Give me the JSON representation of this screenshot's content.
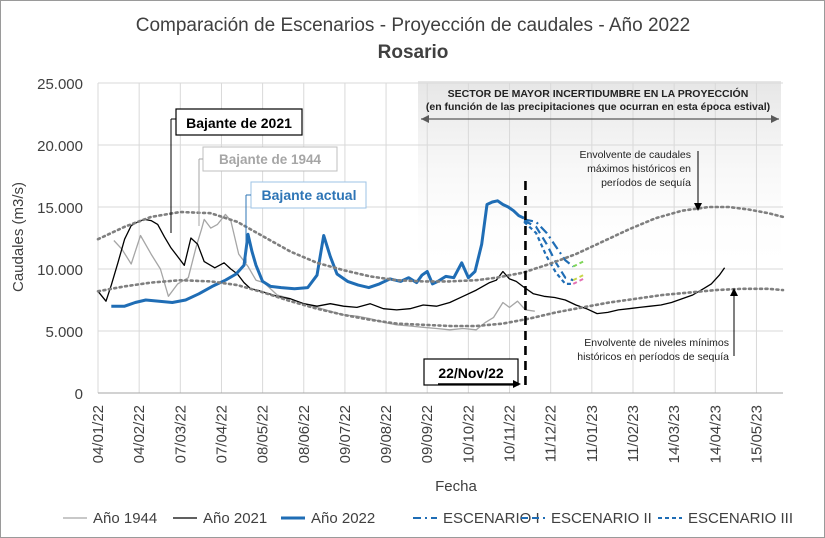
{
  "chart_data": {
    "type": "line",
    "title": "Comparación de Escenarios - Proyección de caudales - Año 2022",
    "subtitle": "Rosario",
    "xlabel": "Fecha",
    "ylabel": "Caudales (m3/s)",
    "ylim": [
      0,
      25000
    ],
    "y_ticks": [
      0,
      5000,
      10000,
      15000,
      20000,
      25000
    ],
    "y_tick_labels": [
      "0",
      "5.000",
      "10.000",
      "15.000",
      "20.000",
      "25.000"
    ],
    "x_range_days": [
      0,
      516
    ],
    "x_ticks": [
      {
        "label": "04/01/22",
        "day": 0
      },
      {
        "label": "04/02/22",
        "day": 31
      },
      {
        "label": "07/03/22",
        "day": 62
      },
      {
        "label": "07/04/22",
        "day": 93
      },
      {
        "label": "08/05/22",
        "day": 124
      },
      {
        "label": "08/06/22",
        "day": 155
      },
      {
        "label": "09/07/22",
        "day": 186
      },
      {
        "label": "09/08/22",
        "day": 217
      },
      {
        "label": "09/09/22",
        "day": 248
      },
      {
        "label": "10/10/22",
        "day": 279
      },
      {
        "label": "10/11/22",
        "day": 310
      },
      {
        "label": "11/12/22",
        "day": 341
      },
      {
        "label": "11/01/23",
        "day": 372
      },
      {
        "label": "11/02/23",
        "day": 403
      },
      {
        "label": "14/03/23",
        "day": 434
      },
      {
        "label": "14/04/23",
        "day": 465
      },
      {
        "label": "15/05/23",
        "day": 496
      }
    ],
    "series": [
      {
        "name": "Año 1944",
        "color": "#a6a6a6",
        "points": [
          [
            12,
            12300
          ],
          [
            18,
            11600
          ],
          [
            25,
            10400
          ],
          [
            32,
            12700
          ],
          [
            40,
            11200
          ],
          [
            47,
            10000
          ],
          [
            53,
            7800
          ],
          [
            60,
            8800
          ],
          [
            68,
            9300
          ],
          [
            74,
            11800
          ],
          [
            78,
            13200
          ],
          [
            80,
            14000
          ],
          [
            85,
            13300
          ],
          [
            90,
            13600
          ],
          [
            96,
            14400
          ],
          [
            100,
            13900
          ],
          [
            106,
            11200
          ],
          [
            113,
            10200
          ],
          [
            119,
            9100
          ],
          [
            125,
            8900
          ],
          [
            135,
            7900
          ],
          [
            145,
            7600
          ],
          [
            155,
            7200
          ],
          [
            165,
            6900
          ],
          [
            175,
            6600
          ],
          [
            185,
            6300
          ],
          [
            195,
            6200
          ],
          [
            205,
            6000
          ],
          [
            215,
            5700
          ],
          [
            225,
            5500
          ],
          [
            235,
            5400
          ],
          [
            245,
            5300
          ],
          [
            255,
            5200
          ],
          [
            265,
            5100
          ],
          [
            275,
            5200
          ],
          [
            285,
            5100
          ],
          [
            292,
            5700
          ],
          [
            298,
            6100
          ],
          [
            305,
            7300
          ],
          [
            310,
            6900
          ],
          [
            316,
            7400
          ],
          [
            322,
            6700
          ],
          [
            329,
            6600
          ]
        ]
      },
      {
        "name": "Año 2021",
        "color": "#000000",
        "points": [
          [
            0,
            8200
          ],
          [
            6,
            7400
          ],
          [
            10,
            8700
          ],
          [
            15,
            10500
          ],
          [
            20,
            12400
          ],
          [
            25,
            13500
          ],
          [
            30,
            13800
          ],
          [
            35,
            14000
          ],
          [
            40,
            13900
          ],
          [
            45,
            13600
          ],
          [
            50,
            12600
          ],
          [
            55,
            11700
          ],
          [
            60,
            11000
          ],
          [
            65,
            10300
          ],
          [
            70,
            12500
          ],
          [
            75,
            12000
          ],
          [
            80,
            10600
          ],
          [
            88,
            10100
          ],
          [
            95,
            10500
          ],
          [
            100,
            10000
          ],
          [
            105,
            9600
          ],
          [
            110,
            8900
          ],
          [
            115,
            8400
          ],
          [
            120,
            8300
          ],
          [
            126,
            8100
          ],
          [
            135,
            7800
          ],
          [
            145,
            7600
          ],
          [
            155,
            7200
          ],
          [
            165,
            7000
          ],
          [
            175,
            7200
          ],
          [
            185,
            7000
          ],
          [
            195,
            6900
          ],
          [
            205,
            7200
          ],
          [
            215,
            6800
          ],
          [
            225,
            6700
          ],
          [
            235,
            6800
          ],
          [
            245,
            7100
          ],
          [
            255,
            7000
          ],
          [
            265,
            7300
          ],
          [
            275,
            7800
          ],
          [
            285,
            8300
          ],
          [
            295,
            8900
          ],
          [
            300,
            9100
          ],
          [
            305,
            9800
          ],
          [
            310,
            9200
          ],
          [
            315,
            9000
          ],
          [
            320,
            8600
          ],
          [
            328,
            8000
          ],
          [
            336,
            7800
          ],
          [
            344,
            7700
          ],
          [
            352,
            7500
          ],
          [
            360,
            7100
          ],
          [
            368,
            6800
          ],
          [
            376,
            6400
          ],
          [
            384,
            6500
          ],
          [
            392,
            6700
          ],
          [
            400,
            6800
          ],
          [
            408,
            6900
          ],
          [
            416,
            7000
          ],
          [
            424,
            7100
          ],
          [
            432,
            7300
          ],
          [
            440,
            7600
          ],
          [
            448,
            7900
          ],
          [
            456,
            8400
          ],
          [
            462,
            8800
          ],
          [
            468,
            9500
          ],
          [
            472,
            10100
          ]
        ]
      },
      {
        "name": "Año 2022",
        "color": "#1f6db5",
        "points": [
          [
            10,
            7000
          ],
          [
            20,
            7000
          ],
          [
            28,
            7300
          ],
          [
            36,
            7500
          ],
          [
            46,
            7400
          ],
          [
            56,
            7300
          ],
          [
            66,
            7500
          ],
          [
            76,
            8000
          ],
          [
            86,
            8600
          ],
          [
            96,
            9100
          ],
          [
            104,
            9600
          ],
          [
            110,
            10300
          ],
          [
            113,
            12800
          ],
          [
            116,
            11400
          ],
          [
            119,
            10300
          ],
          [
            124,
            9000
          ],
          [
            130,
            8600
          ],
          [
            138,
            8500
          ],
          [
            148,
            8400
          ],
          [
            158,
            8500
          ],
          [
            165,
            9500
          ],
          [
            170,
            12700
          ],
          [
            175,
            11000
          ],
          [
            180,
            9600
          ],
          [
            188,
            9000
          ],
          [
            196,
            8700
          ],
          [
            204,
            8500
          ],
          [
            212,
            8800
          ],
          [
            220,
            9200
          ],
          [
            228,
            9000
          ],
          [
            234,
            9300
          ],
          [
            240,
            8900
          ],
          [
            244,
            9500
          ],
          [
            248,
            9800
          ],
          [
            252,
            8800
          ],
          [
            256,
            9000
          ],
          [
            262,
            9400
          ],
          [
            268,
            9300
          ],
          [
            274,
            10500
          ],
          [
            279,
            9300
          ],
          [
            284,
            9800
          ],
          [
            289,
            12000
          ],
          [
            293,
            15200
          ],
          [
            297,
            15400
          ],
          [
            301,
            15500
          ],
          [
            305,
            15200
          ],
          [
            309,
            15000
          ],
          [
            313,
            14700
          ],
          [
            317,
            14300
          ],
          [
            321,
            14100
          ]
        ]
      },
      {
        "name": "ESCENARIO I",
        "color": "#1f6db5",
        "points": [
          [
            321,
            14000
          ],
          [
            330,
            13800
          ],
          [
            338,
            12900
          ],
          [
            345,
            11800
          ],
          [
            352,
            10700
          ],
          [
            358,
            10200
          ]
        ]
      },
      {
        "name": "ESCENARIO II",
        "color": "#1f6db5",
        "points": [
          [
            321,
            13900
          ],
          [
            330,
            13400
          ],
          [
            338,
            12000
          ],
          [
            345,
            10500
          ],
          [
            352,
            9300
          ],
          [
            358,
            9100
          ]
        ]
      },
      {
        "name": "ESCENARIO III",
        "color": "#1f6db5",
        "points": [
          [
            321,
            13800
          ],
          [
            330,
            12900
          ],
          [
            338,
            11000
          ],
          [
            345,
            9700
          ],
          [
            352,
            8800
          ],
          [
            358,
            8800
          ]
        ]
      },
      {
        "name": "Envolvente máximos",
        "color": "#7f7f7f",
        "points": [
          [
            0,
            12400
          ],
          [
            20,
            13400
          ],
          [
            40,
            14200
          ],
          [
            62,
            14600
          ],
          [
            85,
            14500
          ],
          [
            105,
            13800
          ],
          [
            125,
            12600
          ],
          [
            145,
            11400
          ],
          [
            165,
            10500
          ],
          [
            185,
            9900
          ],
          [
            205,
            9400
          ],
          [
            225,
            9100
          ],
          [
            245,
            9000
          ],
          [
            265,
            9000
          ],
          [
            285,
            9100
          ],
          [
            300,
            9300
          ],
          [
            320,
            9700
          ],
          [
            340,
            10400
          ],
          [
            360,
            11200
          ],
          [
            380,
            12200
          ],
          [
            400,
            13200
          ],
          [
            420,
            14100
          ],
          [
            440,
            14700
          ],
          [
            460,
            15000
          ],
          [
            475,
            15000
          ],
          [
            490,
            14800
          ],
          [
            505,
            14500
          ],
          [
            516,
            14200
          ]
        ]
      },
      {
        "name": "Envolvente mínimos",
        "color": "#7f7f7f",
        "points": [
          [
            0,
            8200
          ],
          [
            20,
            8600
          ],
          [
            40,
            8900
          ],
          [
            62,
            9100
          ],
          [
            85,
            9000
          ],
          [
            105,
            8700
          ],
          [
            125,
            8100
          ],
          [
            145,
            7400
          ],
          [
            165,
            6800
          ],
          [
            185,
            6300
          ],
          [
            205,
            5900
          ],
          [
            225,
            5600
          ],
          [
            245,
            5500
          ],
          [
            265,
            5400
          ],
          [
            285,
            5400
          ],
          [
            305,
            5600
          ],
          [
            325,
            6000
          ],
          [
            345,
            6500
          ],
          [
            365,
            6900
          ],
          [
            385,
            7300
          ],
          [
            405,
            7600
          ],
          [
            425,
            7900
          ],
          [
            445,
            8100
          ],
          [
            465,
            8300
          ],
          [
            485,
            8400
          ],
          [
            505,
            8400
          ],
          [
            516,
            8300
          ]
        ]
      }
    ],
    "scenario_tail_colors": [
      "#7fd65a",
      "#c8d64a",
      "#e46fb3"
    ],
    "annotations": {
      "bajante_2021": "Bajante de 2021",
      "bajante_1944": "Bajante de 1944",
      "bajante_actual": "Bajante actual",
      "sector_line1": "SECTOR DE MAYOR INCERTIDUMBRE EN LA PROYECCIÓN",
      "sector_line2": "(en función de las precipitaciones que ocurran en esta época estival)",
      "env_max_1": "Envolvente de caudales",
      "env_max_2": "máximos históricos en",
      "env_max_3": "períodos de sequía",
      "env_min_1": "Envolvente de niveles mínimos",
      "env_min_2": "históricos en períodos de sequía",
      "date_marker": "22/Nov/22",
      "date_marker_day": 322
    },
    "legend": [
      {
        "label": "Año 1944",
        "style": "solid-gray"
      },
      {
        "label": "Año 2021",
        "style": "solid-black"
      },
      {
        "label": "Año 2022",
        "style": "solid-blue-thick"
      },
      {
        "label": "ESCENARIO I",
        "style": "dashdot-blue"
      },
      {
        "label": "ESCENARIO II",
        "style": "dash-blue"
      },
      {
        "label": "ESCENARIO III",
        "style": "shortdash-blue"
      }
    ]
  }
}
